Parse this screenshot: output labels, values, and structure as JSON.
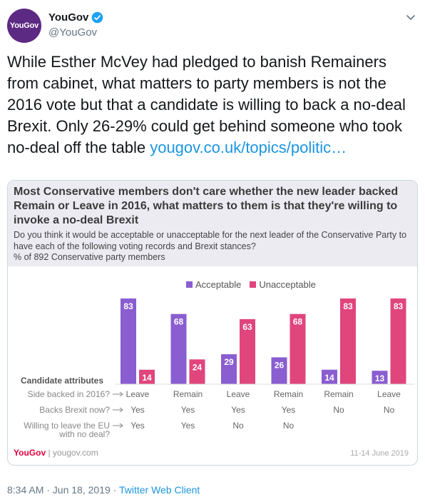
{
  "tweet": {
    "avatar_text": "YouGov",
    "display_name": "YouGov",
    "handle": "@YouGov",
    "text": "While Esther McVey had pledged to banish Remainers from cabinet, what matters to party members is not the 2016 vote but that a candidate is willing to back a no-deal Brexit. Only 26-29% could get behind someone who took no-deal off the table ",
    "link_text": "yougov.co.uk/topics/politic…",
    "time": "8:34 AM · Jun 18, 2019 · ",
    "client": "Twitter Web Client"
  },
  "card": {
    "title": "Most Conservative members don't care whether the new leader backed Remain or Leave in 2016, what matters to them is that they're willing to invoke a no-deal Brexit",
    "subtitle": "Do you think it would be acceptable or unacceptable for the next leader of the Conservative Party to have each of the following voting records and Brexit stances?",
    "base": "% of 892 Conservative party members",
    "footer_brand": "YouGov",
    "footer_site": " | yougov.com",
    "footer_date": "11-14 June 2019"
  },
  "colors": {
    "acceptable": "#8a5dd1",
    "unacceptable": "#e0457b",
    "header_bg": "#ecebf2"
  },
  "chart_data": {
    "type": "bar",
    "categories_label": "Candidate attributes",
    "row_labels": [
      "Side backed in 2016?",
      "Backs Brexit now?",
      "Willing to leave the EU\nwith no deal?"
    ],
    "columns": [
      {
        "side": "Leave",
        "backs": "Yes",
        "nodeal": "Yes"
      },
      {
        "side": "Remain",
        "backs": "Yes",
        "nodeal": "Yes"
      },
      {
        "side": "Leave",
        "backs": "Yes",
        "nodeal": "No"
      },
      {
        "side": "Remain",
        "backs": "Yes",
        "nodeal": "No"
      },
      {
        "side": "Remain",
        "backs": "No",
        "nodeal": ""
      },
      {
        "side": "Leave",
        "backs": "No",
        "nodeal": ""
      }
    ],
    "series": [
      {
        "name": "Acceptable",
        "values": [
          83,
          68,
          29,
          26,
          14,
          13
        ]
      },
      {
        "name": "Unacceptable",
        "values": [
          14,
          24,
          63,
          68,
          83,
          83
        ]
      }
    ],
    "ylim": [
      0,
      83
    ],
    "legend": "top"
  }
}
